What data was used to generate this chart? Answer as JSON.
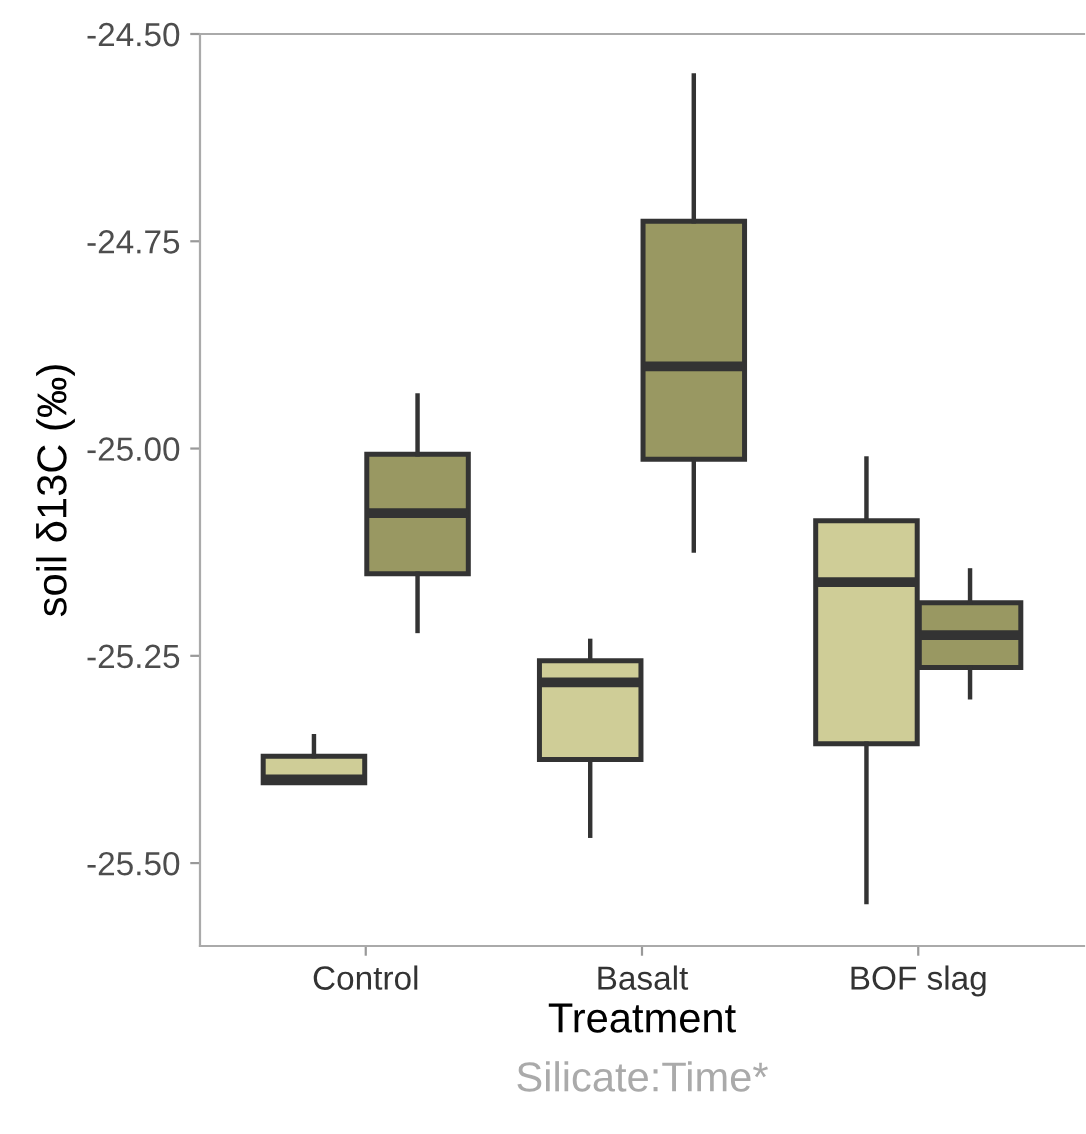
{
  "chart_data": {
    "type": "box",
    "xlabel": "Treatment",
    "ylabel": "soil δ13C (‰)",
    "categories": [
      "Control",
      "Basalt",
      "BOF slag"
    ],
    "series": [
      {
        "color": "#cfcd97",
        "boxes": [
          {
            "low": -25.403,
            "q1": -25.403,
            "median": -25.399,
            "q3": -25.371,
            "high": -25.347
          },
          {
            "low": -25.467,
            "q1": -25.375,
            "median": -25.282,
            "q3": -25.256,
            "high": -25.232
          },
          {
            "low": -25.547,
            "q1": -25.356,
            "median": -25.161,
            "q3": -25.087,
            "high": -25.012
          }
        ]
      },
      {
        "color": "#999862",
        "boxes": [
          {
            "low": -25.22,
            "q1": -25.151,
            "median": -25.078,
            "q3": -25.007,
            "high": -24.936
          },
          {
            "low": -25.123,
            "q1": -25.013,
            "median": -24.901,
            "q3": -24.726,
            "high": -24.55
          },
          {
            "low": -25.3,
            "q1": -25.264,
            "median": -25.225,
            "q3": -25.186,
            "high": -25.147
          }
        ]
      }
    ],
    "ylim": [
      -25.6,
      -24.5
    ],
    "yticks": [
      {
        "value": -25.5,
        "label": "-25.50"
      },
      {
        "value": -25.25,
        "label": "-25.25"
      },
      {
        "value": -25.0,
        "label": "-25.00"
      },
      {
        "value": -24.75,
        "label": "-24.75"
      },
      {
        "value": -24.5,
        "label": "-24.50"
      }
    ],
    "grid": false,
    "annotations": [
      "Silicate:Time*"
    ]
  }
}
